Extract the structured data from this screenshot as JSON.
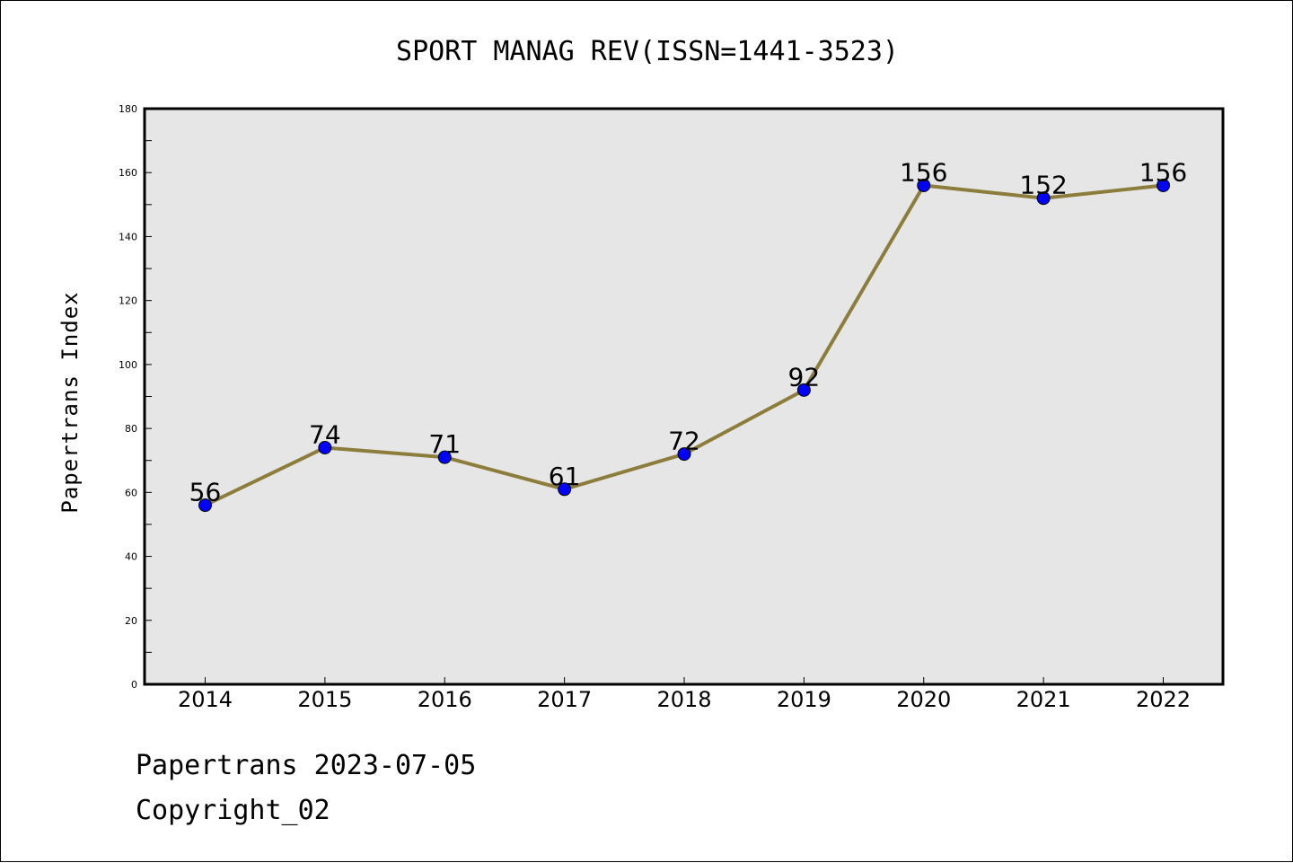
{
  "chart_data": {
    "type": "line",
    "title": "SPORT MANAG REV(ISSN=1441-3523)",
    "xlabel": "",
    "ylabel": "Papertrans Index",
    "categories": [
      "2014",
      "2015",
      "2016",
      "2017",
      "2018",
      "2019",
      "2020",
      "2021",
      "2022"
    ],
    "series": [
      {
        "values": [
          56,
          74,
          71,
          61,
          72,
          92,
          156,
          152,
          156
        ]
      }
    ],
    "ylim": [
      0,
      180
    ],
    "yticks": [
      0,
      20,
      40,
      60,
      80,
      100,
      120,
      140,
      160,
      180
    ],
    "grid": false,
    "legend": "none",
    "colors": {
      "line": "#8c7d3c",
      "marker": "#0000ff",
      "plot_bg": "#e6e6e6"
    }
  },
  "footer": {
    "stamp": "Papertrans 2023-07-05",
    "copyright": "Copyright_02"
  }
}
